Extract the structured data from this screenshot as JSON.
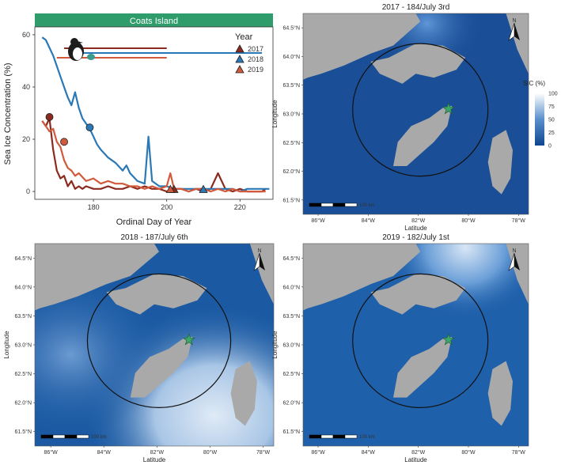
{
  "chart_data": [
    {
      "type": "line",
      "title": "Coats Island",
      "xlabel": "Ordinal Day of Year",
      "ylabel": "Sea Ice Concentration (%)",
      "xlim": [
        164,
        229
      ],
      "ylim": [
        -3,
        63
      ],
      "xticks": [
        180,
        200,
        220
      ],
      "yticks": [
        0,
        20,
        40,
        60
      ],
      "legend_title": "Year",
      "legend_position": "top-right",
      "series": [
        {
          "name": "2017",
          "color": "#8b2a1e",
          "x": [
            166,
            167,
            168,
            169,
            170,
            171,
            172,
            173,
            174,
            175,
            176,
            177,
            178,
            180,
            182,
            184,
            186,
            188,
            190,
            192,
            194,
            196,
            198,
            200,
            202,
            204,
            206,
            208,
            210,
            212,
            214,
            216,
            218,
            220,
            222,
            224,
            226,
            227
          ],
          "y": [
            27,
            25,
            28,
            16,
            8,
            5,
            6,
            2,
            4,
            1,
            2,
            1,
            2,
            1,
            1,
            2,
            1,
            1,
            2,
            1,
            2,
            1,
            1,
            0,
            1,
            1,
            0,
            1,
            0,
            1,
            7,
            1,
            0,
            1,
            0,
            0,
            0,
            1
          ],
          "start_marker": [
            168,
            28.5
          ],
          "end_marker": [
            202,
            0.5
          ],
          "range": [
            172,
            200
          ]
        },
        {
          "name": "2018",
          "color": "#2b78b6",
          "x": [
            166,
            167,
            168,
            169,
            170,
            171,
            172,
            173,
            174,
            175,
            176,
            177,
            178,
            179,
            180,
            181,
            182,
            184,
            186,
            188,
            189,
            190,
            192,
            194,
            195,
            196,
            198,
            200,
            202,
            204,
            206,
            208,
            210,
            212,
            214,
            216,
            218,
            220,
            222,
            224,
            226,
            228
          ],
          "y": [
            59,
            58,
            55,
            52,
            48,
            44,
            40,
            36,
            33,
            38,
            32,
            28,
            26,
            24,
            21,
            18,
            16,
            13,
            11,
            8,
            10,
            7,
            4,
            3,
            21,
            4,
            2,
            2,
            1,
            1,
            1,
            1,
            1,
            1,
            1,
            1,
            1,
            0,
            1,
            1,
            1,
            1
          ],
          "start_marker": [
            179,
            24.5
          ],
          "end_marker": [
            210,
            0.5
          ],
          "range": [
            176,
            226
          ]
        },
        {
          "name": "2019",
          "color": "#d05a3b",
          "x": [
            166,
            167,
            168,
            169,
            170,
            171,
            172,
            173,
            174,
            175,
            176,
            178,
            180,
            182,
            184,
            186,
            188,
            190,
            192,
            194,
            196,
            198,
            200,
            201,
            202,
            204,
            206,
            208,
            210,
            212,
            214,
            216,
            218,
            220,
            222,
            224,
            226,
            227
          ],
          "y": [
            27,
            25,
            23,
            24,
            19,
            17,
            12,
            9,
            8,
            6,
            7,
            4,
            5,
            3,
            4,
            3,
            3,
            2,
            2,
            1,
            2,
            1,
            2,
            7,
            1,
            1,
            0,
            1,
            1,
            0,
            1,
            0,
            1,
            0,
            0,
            0,
            0,
            0
          ],
          "start_marker": [
            172,
            19.0
          ],
          "end_marker": [
            201,
            0.5
          ],
          "range": [
            170,
            200
          ]
        }
      ]
    },
    {
      "type": "heatmap",
      "maps": [
        {
          "title": "2017 - 184/July 3rd"
        },
        {
          "title": "2018 - 187/July 6th"
        },
        {
          "title": "2019 - 182/July 1st"
        }
      ],
      "xlabel": "Latitude",
      "ylabel": "Longitude",
      "x_ticks": [
        "86°W",
        "84°W",
        "82°W",
        "80°W",
        "78°W"
      ],
      "y_ticks": [
        "64.5°N",
        "64.0°N",
        "63.5°N",
        "63.0°N",
        "62.5°N",
        "62.0°N",
        "61.5°N"
      ],
      "scalebar_label": "100 km",
      "north_label": "N",
      "colorbar": {
        "title": "SIC (%)",
        "ticks": [
          100,
          75,
          50,
          25,
          0
        ],
        "low_color": "#0d4690",
        "high_color": "#ffffff"
      }
    }
  ]
}
